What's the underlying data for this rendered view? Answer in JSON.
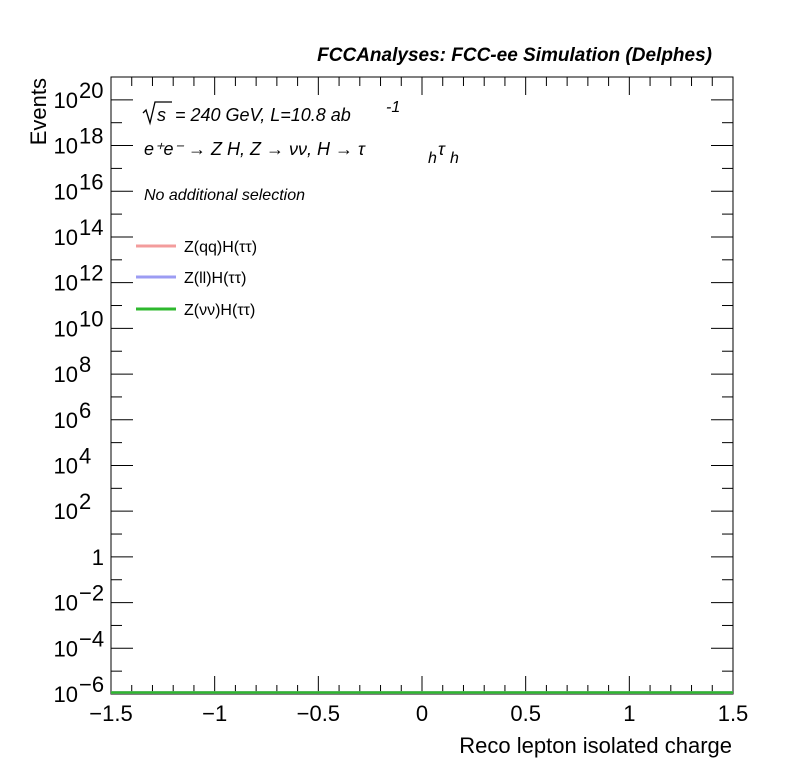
{
  "header": {
    "title": "FCCAnalyses: FCC-ee Simulation (Delphes)"
  },
  "annotations": {
    "energy_sqrt": "s",
    "energy_rest": "= 240 GeV, L=10.8 ab",
    "lumi_exponent": "-1",
    "process_line": "e⁺e⁻ → Z H, Z  → νν, H → τ",
    "process_sub": "h",
    "process_tau2": "τ",
    "selection": "No additional selection"
  },
  "legend": {
    "entries": [
      {
        "label": "Z(qq)H(ττ)",
        "color": "#f39c9c"
      },
      {
        "label": "Z(ll)H(ττ)",
        "color": "#9c9cf3"
      },
      {
        "label": "Z(νν)H(ττ)",
        "color": "#2eb82e"
      }
    ]
  },
  "chart_data": {
    "type": "line",
    "title": "FCCAnalyses: FCC-ee Simulation (Delphes)",
    "xlabel": "Reco lepton isolated charge",
    "ylabel": "Events",
    "xlim": [
      -1.5,
      1.5
    ],
    "ylim": [
      1e-06,
      1e+21
    ],
    "yscale": "log",
    "x_ticks": [
      "−1.5",
      "−1",
      "−0.5",
      "0",
      "0.5",
      "1",
      "1.5"
    ],
    "y_ticks": [
      {
        "base": "10",
        "exp": "20"
      },
      {
        "base": "10",
        "exp": "18"
      },
      {
        "base": "10",
        "exp": "16"
      },
      {
        "base": "10",
        "exp": "14"
      },
      {
        "base": "10",
        "exp": "12"
      },
      {
        "base": "10",
        "exp": "10"
      },
      {
        "base": "10",
        "exp": "8"
      },
      {
        "base": "10",
        "exp": "6"
      },
      {
        "base": "10",
        "exp": "4"
      },
      {
        "base": "10",
        "exp": "2"
      },
      {
        "base": "1",
        "exp": ""
      },
      {
        "base": "10",
        "exp": "−2"
      },
      {
        "base": "10",
        "exp": "−4"
      },
      {
        "base": "10",
        "exp": "−6"
      }
    ],
    "series": [
      {
        "name": "Z(qq)H(ττ)",
        "x": [
          -1.5,
          1.5
        ],
        "y": [
          1e-06,
          1e-06
        ],
        "color": "#f39c9c"
      },
      {
        "name": "Z(ll)H(ττ)",
        "x": [
          -1.5,
          1.5
        ],
        "y": [
          1e-06,
          1e-06
        ],
        "color": "#9c9cf3"
      },
      {
        "name": "Z(νν)H(ττ)",
        "x": [
          -1.5,
          1.5
        ],
        "y": [
          1e-06,
          1e-06
        ],
        "color": "#2eb82e"
      }
    ],
    "grid": false,
    "legend_position": "top-left"
  }
}
